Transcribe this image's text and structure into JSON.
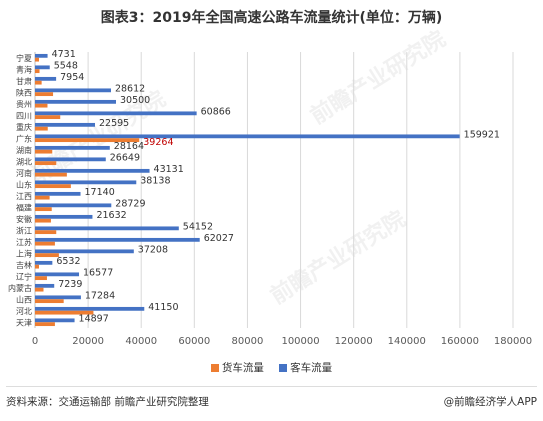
{
  "title": "图表3：2019年全国高速公路车流量统计(单位：万辆)",
  "watermark": "前瞻产业研究院",
  "footer": {
    "source": "资料来源：交通运输部 前瞻产业研究院整理",
    "credit": "@前瞻经济学人APP"
  },
  "colors": {
    "freight": "#ED7D31",
    "passenger": "#4472C4",
    "grid": "#D9D9D9",
    "axis": "#BFBFBF"
  },
  "chart_data": {
    "type": "bar",
    "orientation": "horizontal",
    "categories": [
      "宁夏",
      "青海",
      "甘肃",
      "陕西",
      "贵州",
      "四川",
      "重庆",
      "广东",
      "湖南",
      "湖北",
      "河南",
      "山东",
      "江西",
      "福建",
      "安徽",
      "浙江",
      "江苏",
      "上海",
      "吉林",
      "辽宁",
      "内蒙古",
      "山西",
      "河北",
      "天津"
    ],
    "series": [
      {
        "name": "货车流量",
        "color": "#ED7D31",
        "values": [
          1500,
          1700,
          2500,
          6800,
          4700,
          9500,
          4800,
          39264,
          6500,
          8000,
          12000,
          13500,
          5500,
          6300,
          6000,
          8000,
          7500,
          9000,
          1500,
          4500,
          3200,
          10800,
          22000,
          7500
        ],
        "labels": [
          "",
          "",
          "",
          "",
          "",
          "",
          "",
          "39264",
          "",
          "",
          "",
          "",
          "",
          "",
          "",
          "",
          "",
          "",
          "",
          "",
          "",
          "",
          "",
          ""
        ]
      },
      {
        "name": "客车流量",
        "color": "#4472C4",
        "values": [
          4731,
          5548,
          7954,
          28612,
          30500,
          60866,
          22595,
          159921,
          28164,
          26649,
          43131,
          38138,
          17140,
          28729,
          21632,
          54152,
          62027,
          37208,
          6532,
          16577,
          7239,
          17284,
          41150,
          14897
        ],
        "labels": [
          "4731",
          "5548",
          "7954",
          "28612",
          "30500",
          "60866",
          "22595",
          "159921",
          "28164",
          "26649",
          "43131",
          "38138",
          "17140",
          "28729",
          "21632",
          "54152",
          "62027",
          "37208",
          "6532",
          "16577",
          "7239",
          "17284",
          "41150",
          "14897"
        ]
      }
    ],
    "xlim": [
      0,
      180000
    ],
    "xticks": [
      "0",
      "20000",
      "40000",
      "60000",
      "80000",
      "100000",
      "120000",
      "140000",
      "160000",
      "180000"
    ],
    "grid": true,
    "legend": "bottom"
  }
}
